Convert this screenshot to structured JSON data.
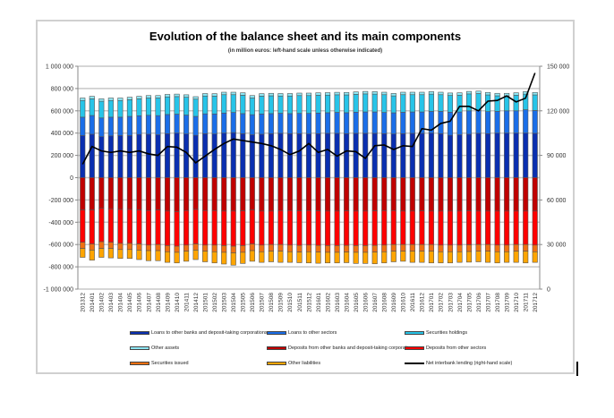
{
  "chart_data": {
    "type": "bar",
    "stacked": true,
    "title": "Evolution of the balance sheet and its main components",
    "subtitle": "(in million euros: left-hand scale unless otherwise indicated)",
    "xlabel": "",
    "ylabel": "",
    "ylim": [
      -1000000,
      1000000
    ],
    "y2lim": [
      0,
      150000
    ],
    "y_ticks": [
      1000000,
      800000,
      600000,
      400000,
      200000,
      0,
      -200000,
      -400000,
      -600000,
      -800000,
      -1000000
    ],
    "y_tick_labels": [
      "1 000 000",
      "800 000",
      "600 000",
      "400 000",
      "200 000",
      "0",
      "-200 000",
      "-400 000",
      "-600 000",
      "-800 000",
      "-1 000 000"
    ],
    "y2_ticks": [
      150000,
      120000,
      90000,
      60000,
      30000,
      0
    ],
    "y2_tick_labels": [
      "150 000",
      "120 000",
      "90 000",
      "60 000",
      "30 000",
      "0"
    ],
    "grid": true,
    "legend_position": "bottom",
    "categories": [
      "201312",
      "201401",
      "201402",
      "201403",
      "201404",
      "201405",
      "201406",
      "201407",
      "201408",
      "201409",
      "201410",
      "201411",
      "201412",
      "201501",
      "201502",
      "201503",
      "201504",
      "201505",
      "201506",
      "201507",
      "201508",
      "201509",
      "201510",
      "201511",
      "201512",
      "201601",
      "201602",
      "201603",
      "201604",
      "201605",
      "201606",
      "201607",
      "201608",
      "201609",
      "201610",
      "201611",
      "201612",
      "201701",
      "201702",
      "201703",
      "201704",
      "201705",
      "201706",
      "201707",
      "201708",
      "201709",
      "201710",
      "201711",
      "201712"
    ],
    "series": [
      {
        "name": "Loans to other banks and deposit-taking corporations",
        "color": "#0a2fb0",
        "axis": "left",
        "values": [
          378000,
          390000,
          368000,
          375000,
          378000,
          378000,
          388000,
          390000,
          385000,
          395000,
          400000,
          392000,
          380000,
          395000,
          392000,
          400000,
          405000,
          395000,
          385000,
          390000,
          395000,
          398000,
          395000,
          395000,
          392000,
          395000,
          398000,
          398000,
          395000,
          398000,
          398000,
          398000,
          395000,
          392000,
          395000,
          398000,
          398000,
          400000,
          395000,
          380000,
          385000,
          390000,
          398000,
          395000,
          400000,
          400000,
          400000,
          400000,
          398000
        ]
      },
      {
        "name": "Loans to other sectors",
        "color": "#1a6ee8",
        "axis": "left",
        "values": [
          165000,
          168000,
          168000,
          168000,
          165000,
          172000,
          168000,
          170000,
          172000,
          172000,
          170000,
          170000,
          170000,
          178000,
          180000,
          180000,
          180000,
          180000,
          180000,
          182000,
          180000,
          180000,
          180000,
          182000,
          185000,
          185000,
          185000,
          188000,
          188000,
          190000,
          192000,
          192000,
          190000,
          190000,
          192000,
          192000,
          192000,
          195000,
          200000,
          208000,
          205000,
          210000,
          205000,
          198000,
          195000,
          200000,
          200000,
          210000,
          205000
        ]
      },
      {
        "name": "Securities holdings",
        "color": "#27c4e8",
        "axis": "left",
        "values": [
          150000,
          150000,
          150000,
          150000,
          150000,
          150000,
          152000,
          155000,
          158000,
          158000,
          158000,
          160000,
          155000,
          160000,
          160000,
          165000,
          160000,
          165000,
          150000,
          160000,
          160000,
          155000,
          158000,
          160000,
          160000,
          160000,
          158000,
          158000,
          160000,
          160000,
          162000,
          160000,
          160000,
          152000,
          158000,
          155000,
          155000,
          155000,
          150000,
          150000,
          150000,
          152000,
          152000,
          150000,
          140000,
          135000,
          140000,
          140000,
          140000
        ]
      },
      {
        "name": "Other assets",
        "color": "#8ee8f5",
        "axis": "left",
        "values": [
          22000,
          22000,
          22000,
          22000,
          22000,
          22000,
          22000,
          22000,
          22000,
          22000,
          22000,
          22000,
          22000,
          22000,
          22000,
          22000,
          22000,
          22000,
          22000,
          22000,
          22000,
          22000,
          22000,
          22000,
          22000,
          22000,
          22000,
          22000,
          22000,
          22000,
          22000,
          22000,
          22000,
          22000,
          22000,
          22000,
          22000,
          22000,
          22000,
          22000,
          22000,
          22000,
          22000,
          22000,
          22000,
          22000,
          22000,
          22000,
          22000
        ]
      },
      {
        "name": "Deposits from other banks and deposit-taking corporations",
        "color": "#c00000",
        "axis": "left",
        "values": [
          -290000,
          -290000,
          -275000,
          -280000,
          -285000,
          -285000,
          -290000,
          -295000,
          -290000,
          -300000,
          -305000,
          -295000,
          -285000,
          -295000,
          -295000,
          -300000,
          -300000,
          -298000,
          -290000,
          -300000,
          -300000,
          -295000,
          -295000,
          -298000,
          -295000,
          -298000,
          -300000,
          -300000,
          -298000,
          -300000,
          -300000,
          -298000,
          -295000,
          -295000,
          -300000,
          -300000,
          -298000,
          -300000,
          -300000,
          -300000,
          -300000,
          -298000,
          -300000,
          -300000,
          -300000,
          -300000,
          -300000,
          -300000,
          -300000
        ]
      },
      {
        "name": "Deposits from other sectors",
        "color": "#ff0000",
        "axis": "left",
        "values": [
          -290000,
          -305000,
          -300000,
          -300000,
          -305000,
          -305000,
          -305000,
          -310000,
          -310000,
          -310000,
          -310000,
          -310000,
          -310000,
          -310000,
          -310000,
          -310000,
          -315000,
          -312000,
          -305000,
          -305000,
          -300000,
          -305000,
          -310000,
          -310000,
          -310000,
          -310000,
          -310000,
          -310000,
          -310000,
          -310000,
          -310000,
          -310000,
          -310000,
          -305000,
          -300000,
          -300000,
          -302000,
          -300000,
          -305000,
          -305000,
          -305000,
          -305000,
          -300000,
          -300000,
          -305000,
          -305000,
          -300000,
          -300000,
          -305000
        ]
      },
      {
        "name": "Securities issued",
        "color": "#f07010",
        "axis": "left",
        "values": [
          -55000,
          -55000,
          -60000,
          -55000,
          -55000,
          -55000,
          -55000,
          -50000,
          -55000,
          -55000,
          -55000,
          -55000,
          -55000,
          -55000,
          -60000,
          -60000,
          -60000,
          -60000,
          -60000,
          -60000,
          -60000,
          -60000,
          -60000,
          -60000,
          -60000,
          -60000,
          -60000,
          -60000,
          -60000,
          -60000,
          -60000,
          -60000,
          -60000,
          -60000,
          -60000,
          -60000,
          -60000,
          -60000,
          -60000,
          -60000,
          -60000,
          -60000,
          -60000,
          -60000,
          -60000,
          -60000,
          -60000,
          -60000,
          -60000
        ]
      },
      {
        "name": "Other liabilities",
        "color": "#ffa500",
        "axis": "left",
        "values": [
          -80000,
          -90000,
          -80000,
          -85000,
          -80000,
          -80000,
          -85000,
          -90000,
          -90000,
          -95000,
          -95000,
          -90000,
          -85000,
          -95000,
          -100000,
          -105000,
          -110000,
          -100000,
          -95000,
          -95000,
          -95000,
          -100000,
          -95000,
          -95000,
          -100000,
          -100000,
          -95000,
          -95000,
          -95000,
          -100000,
          -100000,
          -105000,
          -100000,
          -95000,
          -90000,
          -100000,
          -100000,
          -105000,
          -100000,
          -100000,
          -95000,
          -95000,
          -95000,
          -100000,
          -100000,
          -95000,
          -100000,
          -105000,
          -95000
        ]
      },
      {
        "name": "Net interbank lending (right-hand scale)",
        "color": "#000000",
        "axis": "right",
        "type": "line",
        "values": [
          84000,
          96000,
          93000,
          92000,
          93000,
          92000,
          93000,
          91000,
          90000,
          96000,
          95500,
          92000,
          85000,
          89500,
          94000,
          98000,
          101000,
          100000,
          99000,
          98000,
          96500,
          94000,
          90500,
          93000,
          98000,
          92000,
          94000,
          89500,
          93000,
          92500,
          88000,
          96500,
          97000,
          94000,
          96500,
          96000,
          108000,
          107000,
          111500,
          113000,
          123000,
          123000,
          120000,
          126500,
          127000,
          130000,
          126000,
          128500,
          145500
        ]
      }
    ]
  }
}
